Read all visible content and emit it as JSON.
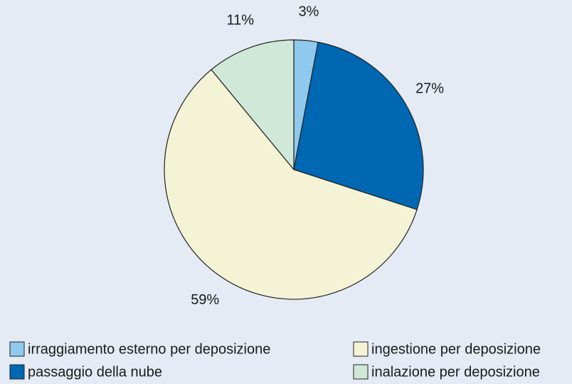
{
  "chart_data": {
    "type": "pie",
    "categories": [
      "irraggiamento esterno per deposizione",
      "passaggio della nube",
      "ingestione per deposizione",
      "inalazione per deposizione"
    ],
    "values": [
      3,
      27,
      59,
      11
    ],
    "value_labels": [
      "3%",
      "27%",
      "59%",
      "11%"
    ],
    "colors": [
      "#8fc9ed",
      "#0067b2",
      "#f5f3d6",
      "#cfe8d8"
    ]
  }
}
